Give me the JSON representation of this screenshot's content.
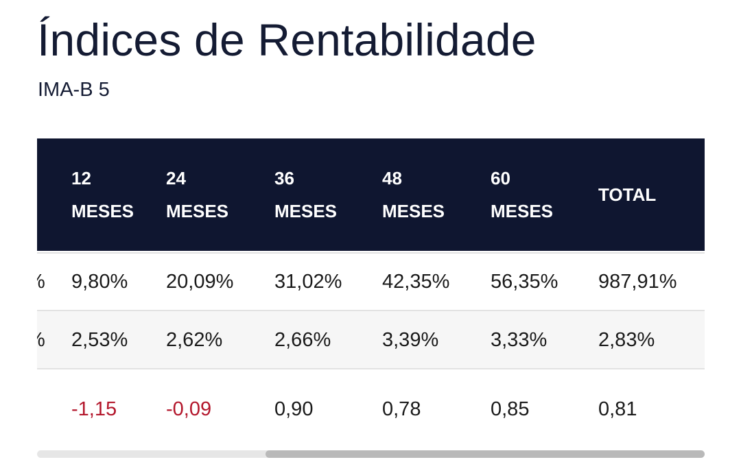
{
  "page": {
    "title": "Índices de Rentabilidade",
    "subtitle": "IMA-B 5"
  },
  "table": {
    "columns": [
      {
        "line1": "12",
        "line2": "MESES"
      },
      {
        "line1": "24",
        "line2": "MESES"
      },
      {
        "line1": "36",
        "line2": "MESES"
      },
      {
        "line1": "48",
        "line2": "MESES"
      },
      {
        "line1": "60",
        "line2": "MESES"
      },
      {
        "line1": "TOTAL",
        "line2": ""
      }
    ],
    "rows": [
      {
        "cut_label": "%",
        "values": [
          "9,80%",
          "20,09%",
          "31,02%",
          "42,35%",
          "56,35%",
          "987,91%"
        ]
      },
      {
        "cut_label": "%",
        "values": [
          "2,53%",
          "2,62%",
          "2,66%",
          "3,39%",
          "3,33%",
          "2,83%"
        ]
      },
      {
        "cut_label": "",
        "values": [
          "-1,15",
          "-0,09",
          "0,90",
          "0,78",
          "0,85",
          "0,81"
        ]
      }
    ]
  },
  "colors": {
    "header_bg": "#0f1630",
    "negative": "#b3162b",
    "text": "#1a1a1a",
    "title": "#141b33"
  }
}
